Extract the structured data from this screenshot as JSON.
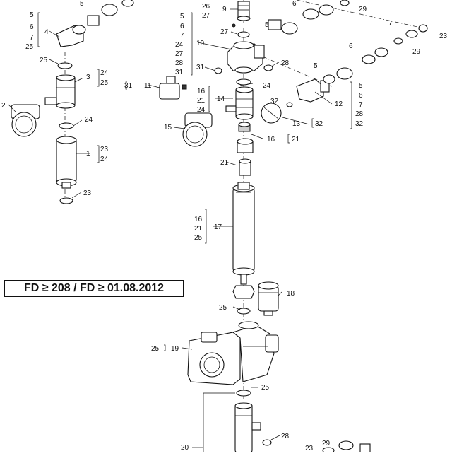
{
  "banner": {
    "text": "FD ≥ 208 / FD ≥ 01.08.2012"
  },
  "labels": {
    "l1": "1",
    "l2": "2",
    "l3": "3",
    "l4": "4",
    "l5": "5",
    "l6": "6",
    "l7": "7",
    "l9": "9",
    "l10": "10",
    "l11": "11",
    "l12": "12",
    "l13": "13",
    "l14": "14",
    "l15": "15",
    "l16": "16",
    "l17": "17",
    "l18": "18",
    "l19": "19",
    "l20": "20",
    "l21": "21",
    "l23": "23",
    "l24": "24",
    "l25": "25",
    "l26": "26",
    "l27": "27",
    "l28": "28",
    "l29": "29",
    "l31": "31",
    "l32": "32"
  }
}
